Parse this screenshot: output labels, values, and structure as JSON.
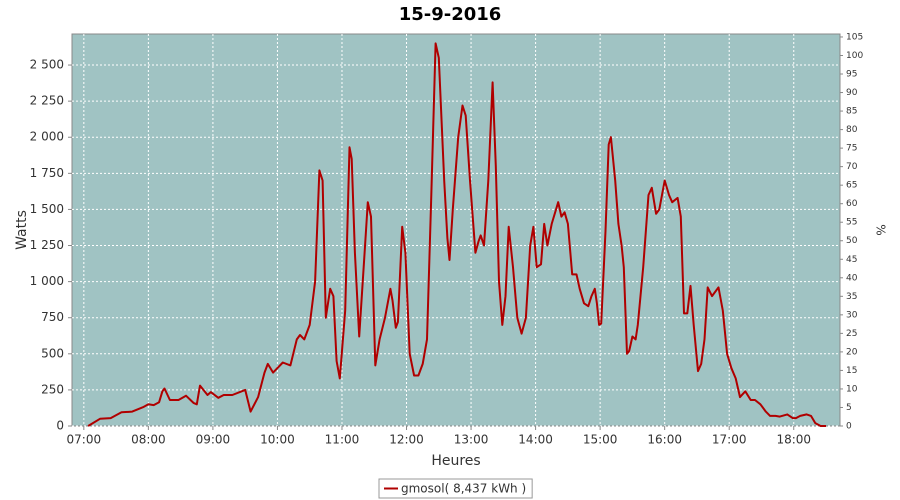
{
  "chart_data": {
    "type": "line",
    "title": "15-9-2016",
    "xlabel": "Heures",
    "ylabel": "Watts",
    "y2label": "%",
    "series": [
      {
        "name": "gmosol( 8,437 kWh )",
        "color": "#b00000",
        "x": [
          "07:04",
          "07:15",
          "07:25",
          "07:35",
          "07:45",
          "07:55",
          "08:00",
          "08:05",
          "08:10",
          "08:13",
          "08:15",
          "08:20",
          "08:28",
          "08:35",
          "08:42",
          "08:45",
          "08:48",
          "08:55",
          "08:58",
          "09:05",
          "09:10",
          "09:18",
          "09:25",
          "09:30",
          "09:35",
          "09:42",
          "09:48",
          "09:51",
          "09:56",
          "10:05",
          "10:12",
          "10:18",
          "10:21",
          "10:25",
          "10:30",
          "10:35",
          "10:39",
          "10:42",
          "10:45",
          "10:49",
          "10:52",
          "10:55",
          "10:58",
          "11:03",
          "11:07",
          "11:09",
          "11:12",
          "11:16",
          "11:21",
          "11:24",
          "11:27",
          "11:31",
          "11:35",
          "11:40",
          "11:45",
          "11:47",
          "11:50",
          "11:52",
          "11:56",
          "11:59",
          "12:03",
          "12:07",
          "12:11",
          "12:15",
          "12:19",
          "12:23",
          "12:27",
          "12:30",
          "12:35",
          "12:38",
          "12:40",
          "12:43",
          "12:48",
          "12:52",
          "12:55",
          "12:59",
          "13:04",
          "13:07",
          "13:09",
          "13:12",
          "13:16",
          "13:20",
          "13:23",
          "13:26",
          "13:29",
          "13:32",
          "13:35",
          "13:39",
          "13:43",
          "13:47",
          "13:51",
          "13:55",
          "13:58",
          "14:01",
          "14:05",
          "14:08",
          "14:11",
          "14:15",
          "14:21",
          "14:24",
          "14:27",
          "14:30",
          "14:34",
          "14:38",
          "14:41",
          "14:45",
          "14:49",
          "14:52",
          "14:55",
          "14:57",
          "14:59",
          "15:01",
          "15:05",
          "15:08",
          "15:10",
          "15:14",
          "15:17",
          "15:20",
          "15:22",
          "15:25",
          "15:27",
          "15:30",
          "15:33",
          "15:35",
          "15:40",
          "15:45",
          "15:48",
          "15:52",
          "15:55",
          "16:00",
          "16:04",
          "16:07",
          "16:12",
          "16:15",
          "16:18",
          "16:21",
          "16:24",
          "16:27",
          "16:31",
          "16:34",
          "16:37",
          "16:40",
          "16:44",
          "16:50",
          "16:54",
          "16:58",
          "17:02",
          "17:06",
          "17:10",
          "17:15",
          "17:20",
          "17:24",
          "17:29",
          "17:34",
          "17:38",
          "17:43",
          "17:47",
          "17:54",
          "17:59",
          "18:02",
          "18:06",
          "18:12",
          "18:16",
          "18:20",
          "18:25",
          "18:30"
        ],
        "values": [
          0,
          50,
          55,
          95,
          100,
          130,
          150,
          145,
          165,
          240,
          260,
          180,
          180,
          210,
          160,
          150,
          280,
          215,
          235,
          195,
          215,
          215,
          235,
          250,
          100,
          200,
          370,
          430,
          370,
          440,
          420,
          600,
          630,
          600,
          700,
          1000,
          1770,
          1700,
          750,
          950,
          900,
          450,
          330,
          800,
          1930,
          1850,
          1200,
          620,
          1200,
          1550,
          1450,
          420,
          600,
          750,
          950,
          870,
          680,
          720,
          1380,
          1200,
          500,
          350,
          350,
          430,
          600,
          1600,
          2650,
          2550,
          1700,
          1300,
          1150,
          1500,
          2000,
          2220,
          2150,
          1700,
          1200,
          1280,
          1320,
          1250,
          1700,
          2380,
          1800,
          1000,
          700,
          900,
          1380,
          1100,
          750,
          640,
          750,
          1250,
          1380,
          1100,
          1120,
          1400,
          1250,
          1400,
          1550,
          1450,
          1480,
          1400,
          1050,
          1050,
          950,
          850,
          830,
          900,
          950,
          850,
          700,
          710,
          1350,
          1950,
          2000,
          1700,
          1400,
          1250,
          1100,
          500,
          520,
          620,
          600,
          700,
          1100,
          1600,
          1650,
          1470,
          1500,
          1700,
          1600,
          1550,
          1580,
          1450,
          780,
          780,
          970,
          700,
          380,
          430,
          600,
          960,
          900,
          960,
          800,
          500,
          400,
          330,
          200,
          240,
          180,
          180,
          150,
          100,
          70,
          70,
          65,
          80,
          55,
          55,
          70,
          80,
          70,
          20,
          0,
          0
        ]
      }
    ],
    "xlim": [
      "06:49",
      "18:43"
    ],
    "xticks": [
      "07:00",
      "08:00",
      "09:00",
      "10:00",
      "11:00",
      "12:00",
      "13:00",
      "14:00",
      "15:00",
      "16:00",
      "17:00",
      "18:00"
    ],
    "ylim": [
      0,
      2715
    ],
    "yticks": [
      0,
      250,
      500,
      750,
      {
        "value": 1000,
        "label": "1 000"
      },
      {
        "value": 1250,
        "label": "1 250"
      },
      {
        "value": 1500,
        "label": "1 500"
      },
      {
        "value": 1750,
        "label": "1 750"
      },
      {
        "value": 2000,
        "label": "2 000"
      },
      {
        "value": 2250,
        "label": "2 250"
      },
      {
        "value": 2500,
        "label": "2 500"
      }
    ],
    "y2lim": [
      0,
      105.8
    ],
    "y2ticks": [
      0,
      5,
      10,
      15,
      20,
      25,
      30,
      35,
      40,
      45,
      50,
      55,
      60,
      65,
      70,
      75,
      80,
      85,
      90,
      95,
      100,
      105
    ],
    "grid": true,
    "legend": "bottom",
    "background": "#a0c3c3"
  }
}
